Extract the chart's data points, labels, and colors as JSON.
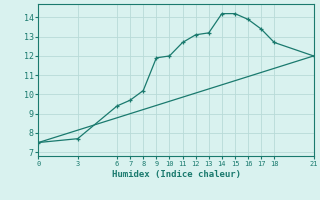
{
  "curve1_x": [
    0,
    3,
    6,
    7,
    8,
    9,
    10,
    11,
    12,
    13,
    14,
    15,
    16,
    17,
    18,
    21
  ],
  "curve1_y": [
    7.5,
    7.7,
    9.4,
    9.7,
    10.2,
    11.9,
    12.0,
    12.7,
    13.1,
    13.2,
    14.2,
    14.2,
    13.9,
    13.4,
    12.7,
    12.0
  ],
  "curve2_x": [
    0,
    21
  ],
  "curve2_y": [
    7.5,
    12.0
  ],
  "line_color": "#1a7a6e",
  "bg_color": "#d9f2ef",
  "grid_color": "#b8dbd8",
  "xlabel": "Humidex (Indice chaleur)",
  "xticks": [
    0,
    3,
    6,
    7,
    8,
    9,
    10,
    11,
    12,
    13,
    14,
    15,
    16,
    17,
    18,
    21
  ],
  "yticks": [
    7,
    8,
    9,
    10,
    11,
    12,
    13,
    14
  ],
  "ylim": [
    6.8,
    14.7
  ],
  "xlim": [
    0,
    21
  ]
}
